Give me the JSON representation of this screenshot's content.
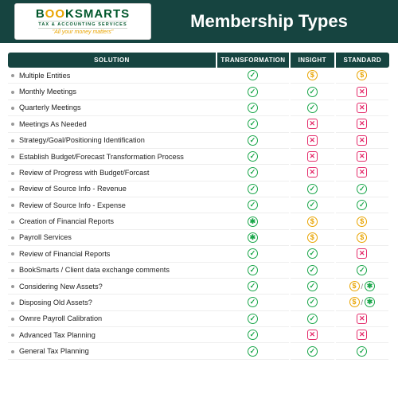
{
  "brand": {
    "name_a": "B",
    "name_b": "OO",
    "name_c": "KSMARTS",
    "subtitle": "TAX & ACCOUNTING SERVICES",
    "tagline": "\"All your money matters\""
  },
  "header": {
    "title": "Membership Types"
  },
  "columns": {
    "solution": "SOLUTION",
    "transformation": "TRANSFORMATION",
    "insight": "INSIGHT",
    "standard": "STANDARD"
  },
  "glyphs": {
    "check": "✓",
    "cross": "✕",
    "dollar": "$",
    "star": "✱",
    "slash": "/"
  },
  "rows": [
    {
      "label": "Multiple Entities",
      "t": [
        "check"
      ],
      "i": [
        "dollar"
      ],
      "s": [
        "dollar"
      ]
    },
    {
      "label": "Monthly Meetings",
      "t": [
        "check"
      ],
      "i": [
        "check"
      ],
      "s": [
        "cross"
      ]
    },
    {
      "label": "Quarterly Meetings",
      "t": [
        "check"
      ],
      "i": [
        "check"
      ],
      "s": [
        "cross"
      ]
    },
    {
      "label": "Meetings As Needed",
      "t": [
        "check"
      ],
      "i": [
        "cross"
      ],
      "s": [
        "cross"
      ]
    },
    {
      "label": "Strategy/Goal/Positioning Identification",
      "t": [
        "check"
      ],
      "i": [
        "cross"
      ],
      "s": [
        "cross"
      ]
    },
    {
      "label": "Establish Budget/Forecast Transformation Process",
      "t": [
        "check"
      ],
      "i": [
        "cross"
      ],
      "s": [
        "cross"
      ]
    },
    {
      "label": "Review of Progress with Budget/Forcast",
      "t": [
        "check"
      ],
      "i": [
        "cross"
      ],
      "s": [
        "cross"
      ]
    },
    {
      "label": "Review of Source Info - Revenue",
      "t": [
        "check"
      ],
      "i": [
        "check"
      ],
      "s": [
        "check"
      ]
    },
    {
      "label": "Review of Source Info - Expense",
      "t": [
        "check"
      ],
      "i": [
        "check"
      ],
      "s": [
        "check"
      ]
    },
    {
      "label": "Creation of Financial Reports",
      "t": [
        "star"
      ],
      "i": [
        "dollar"
      ],
      "s": [
        "dollar"
      ]
    },
    {
      "label": "Payroll Services",
      "t": [
        "star"
      ],
      "i": [
        "dollar"
      ],
      "s": [
        "dollar"
      ]
    },
    {
      "label": "Review of Financial Reports",
      "t": [
        "check"
      ],
      "i": [
        "check"
      ],
      "s": [
        "cross"
      ]
    },
    {
      "label": "BookSmarts / Client data exchange comments",
      "t": [
        "check"
      ],
      "i": [
        "check"
      ],
      "s": [
        "check"
      ]
    },
    {
      "label": "Considering New Assets?",
      "t": [
        "check"
      ],
      "i": [
        "check"
      ],
      "s": [
        "dollar",
        "star"
      ]
    },
    {
      "label": "Disposing Old Assets?",
      "t": [
        "check"
      ],
      "i": [
        "check"
      ],
      "s": [
        "dollar",
        "star"
      ]
    },
    {
      "label": "Ownre Payroll Calibration",
      "t": [
        "check"
      ],
      "i": [
        "check"
      ],
      "s": [
        "cross"
      ]
    },
    {
      "label": "Advanced Tax Planning",
      "t": [
        "check"
      ],
      "i": [
        "cross"
      ],
      "s": [
        "cross"
      ]
    },
    {
      "label": "General Tax Planning",
      "t": [
        "check"
      ],
      "i": [
        "check"
      ],
      "s": [
        "check"
      ]
    }
  ],
  "colors": {
    "header_bg": "#164440",
    "check": "#1aa64a",
    "cross": "#e42b6a",
    "dollar": "#e9a400"
  }
}
